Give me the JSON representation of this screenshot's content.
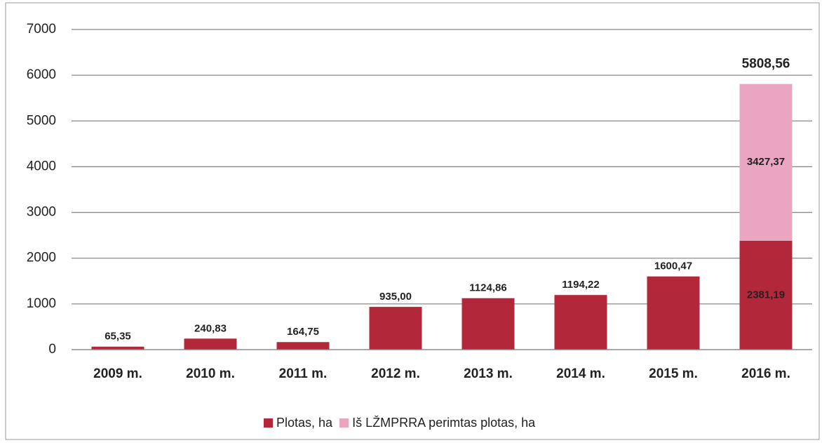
{
  "chart_data": {
    "type": "stacked_bar",
    "categories": [
      "2009 m.",
      "2010 m.",
      "2011 m.",
      "2012 m.",
      "2013 m.",
      "2014 m.",
      "2015 m.",
      "2016 m."
    ],
    "series": [
      {
        "name": "Plotas, ha",
        "color": "#b3273b",
        "values": [
          65.35,
          240.83,
          164.75,
          935.0,
          1124.86,
          1194.22,
          1600.47,
          2381.19
        ],
        "value_labels": [
          "65,35",
          "240,83",
          "164,75",
          "935,00",
          "1124,86",
          "1194,22",
          "1600,47",
          "2381,19"
        ]
      },
      {
        "name": "Iš LŽMPRRA perimtas plotas, ha",
        "color": "#eaa5c1",
        "values": [
          null,
          null,
          null,
          null,
          null,
          null,
          null,
          3427.37
        ],
        "value_labels": [
          null,
          null,
          null,
          null,
          null,
          null,
          null,
          "3427,37"
        ]
      }
    ],
    "totals": {
      "values": [
        null,
        null,
        null,
        null,
        null,
        null,
        null,
        5808.56
      ],
      "value_labels": [
        null,
        null,
        null,
        null,
        null,
        null,
        null,
        "5808,56"
      ]
    },
    "ylim": [
      0,
      7000
    ],
    "yticks": [
      0,
      1000,
      2000,
      3000,
      4000,
      5000,
      6000,
      7000
    ],
    "grid": true,
    "legend": "bottom"
  }
}
